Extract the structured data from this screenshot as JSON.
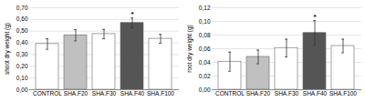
{
  "chart_data": [
    {
      "type": "bar",
      "categories": [
        "CONTROL",
        "SHA.F20",
        "SHA.F30",
        "SHA.F40",
        "SHA.F100"
      ],
      "values": [
        0.39,
        0.465,
        0.475,
        0.57,
        0.435
      ],
      "errors": [
        0.045,
        0.048,
        0.04,
        0.042,
        0.038
      ],
      "colors": [
        "white",
        "#c0c0c0",
        "white",
        "#555555",
        "white"
      ],
      "ylabel": "shoot dry weight (g)",
      "ylim": [
        0.0,
        0.7
      ],
      "yticks": [
        {
          "value": 0.0,
          "label": "0,00"
        },
        {
          "value": 0.1,
          "label": "0,10"
        },
        {
          "value": 0.2,
          "label": "0,20"
        },
        {
          "value": 0.3,
          "label": "0,30"
        },
        {
          "value": 0.4,
          "label": "0,40"
        },
        {
          "value": 0.5,
          "label": "0,50"
        },
        {
          "value": 0.6,
          "label": "0,60"
        },
        {
          "value": 0.7,
          "label": "0,70"
        }
      ],
      "grid": true,
      "annotations": [
        {
          "text": "*",
          "category": "SHA.F40"
        }
      ]
    },
    {
      "type": "bar",
      "categories": [
        "CONTROL",
        "SHA.F20",
        "SHA.F30",
        "SHA.F40",
        "SHA.F100"
      ],
      "values": [
        0.041,
        0.048,
        0.061,
        0.083,
        0.064
      ],
      "errors": [
        0.014,
        0.01,
        0.013,
        0.018,
        0.01
      ],
      "colors": [
        "white",
        "#c0c0c0",
        "white",
        "#555555",
        "white"
      ],
      "ylabel": "root dry weight (g)",
      "ylim": [
        0.0,
        0.12
      ],
      "yticks": [
        {
          "value": 0.0,
          "label": "0,00"
        },
        {
          "value": 0.02,
          "label": "0,02"
        },
        {
          "value": 0.04,
          "label": "0,04"
        },
        {
          "value": 0.06,
          "label": "0,06"
        },
        {
          "value": 0.08,
          "label": "0,08"
        },
        {
          "value": 0.1,
          "label": "0,10"
        },
        {
          "value": 0.12,
          "label": "0,12"
        }
      ],
      "grid": true,
      "annotations": [
        {
          "text": "*",
          "category": "SHA.F40"
        }
      ]
    }
  ]
}
